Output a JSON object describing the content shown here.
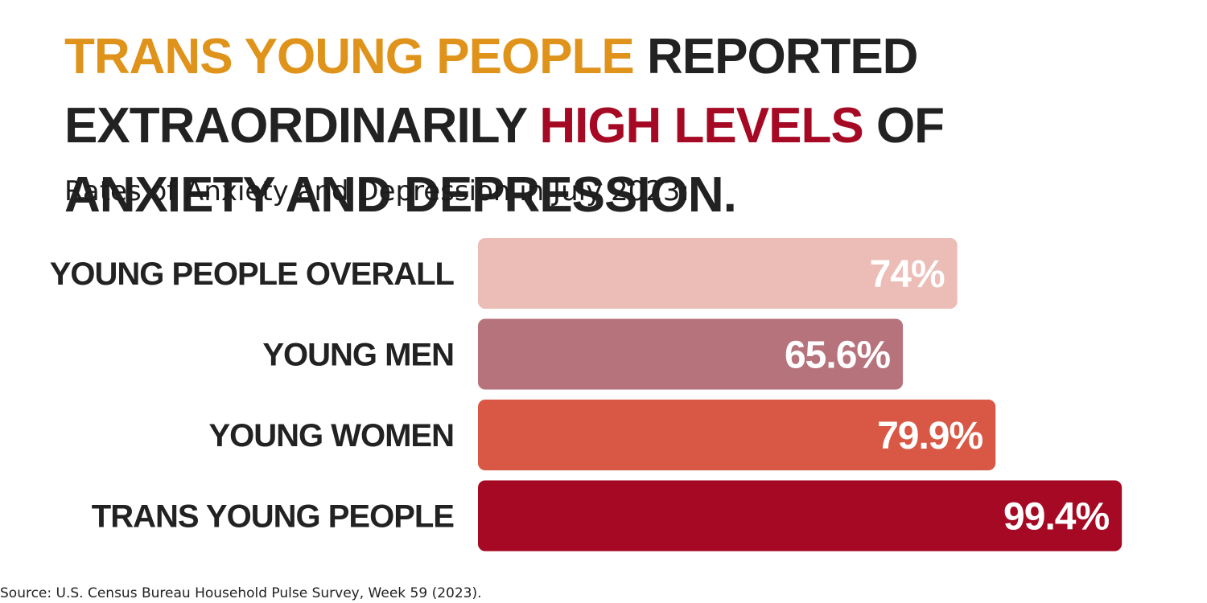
{
  "headline": {
    "part1": "TRANS YOUNG PEOPLE",
    "part2": " REPORTED EXTRAORDINARILY ",
    "part3": "HIGH LEVELS",
    "part4": " OF ANXIETY AND DEPRESSION."
  },
  "colors": {
    "headline_accent_orange": "#e0931a",
    "headline_accent_red": "#a50923",
    "text_dark": "#222222"
  },
  "chart_data": {
    "type": "bar",
    "orientation": "horizontal",
    "title": "Rates of Anxiety and Depression in July 2023:",
    "categories": [
      "YOUNG PEOPLE OVERALL",
      "YOUNG MEN",
      "YOUNG WOMEN",
      "TRANS YOUNG PEOPLE"
    ],
    "values": [
      74,
      65.6,
      79.9,
      99.4
    ],
    "value_labels": [
      "74%",
      "65.6%",
      "79.9%",
      "99.4%"
    ],
    "bar_colors": [
      "#ecbcb6",
      "#b7737c",
      "#d95745",
      "#a50923"
    ],
    "xlim": [
      0,
      100
    ],
    "grid": false,
    "legend": "none"
  },
  "source": "Source: U.S. Census Bureau Household Pulse Survey, Week 59 (2023)."
}
